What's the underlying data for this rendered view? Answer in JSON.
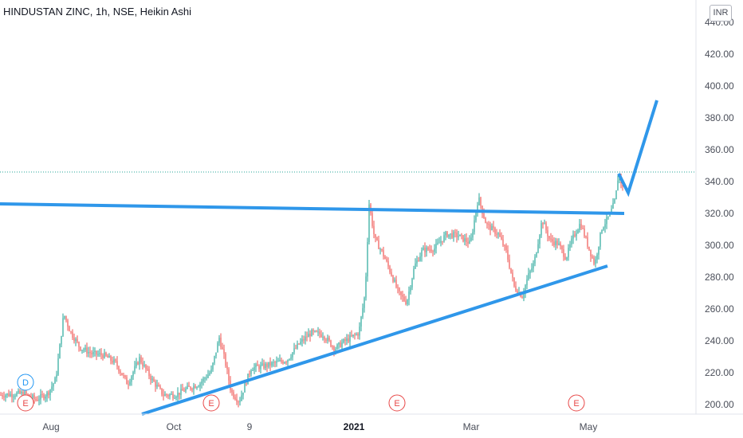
{
  "header": {
    "title": "HINDUSTAN ZINC, 1h, NSE, Heikin Ashi",
    "currency": "INR"
  },
  "colors": {
    "up": "#26a69a",
    "down": "#ef5350",
    "drawing": "#2f97ea",
    "axis_text": "#4a4e59",
    "price_line": "#26a69a",
    "event_earnings": "#e84a4a",
    "event_dividend": "#2196f3"
  },
  "chart_data": {
    "type": "candlestick",
    "style": "Heikin Ashi",
    "ylim": [
      196,
      444
    ],
    "yticks": [
      "440.00",
      "420.00",
      "400.00",
      "380.00",
      "360.00",
      "340.00",
      "320.00",
      "300.00",
      "280.00",
      "260.00",
      "240.00",
      "220.00",
      "200.00"
    ],
    "xticks": [
      {
        "label": "Aug",
        "bold": false
      },
      {
        "label": "Oct",
        "bold": false
      },
      {
        "label": "9",
        "bold": false
      },
      {
        "label": "2021",
        "bold": true
      },
      {
        "label": "Mar",
        "bold": false
      },
      {
        "label": "May",
        "bold": false
      }
    ],
    "price_path": [
      [
        0,
        206
      ],
      [
        30,
        207
      ],
      [
        45,
        203
      ],
      [
        60,
        207
      ],
      [
        70,
        216
      ],
      [
        80,
        257
      ],
      [
        88,
        246
      ],
      [
        100,
        236
      ],
      [
        115,
        232
      ],
      [
        130,
        231
      ],
      [
        145,
        226
      ],
      [
        160,
        213
      ],
      [
        175,
        229
      ],
      [
        190,
        216
      ],
      [
        205,
        206
      ],
      [
        220,
        206
      ],
      [
        235,
        210
      ],
      [
        250,
        213
      ],
      [
        265,
        221
      ],
      [
        275,
        242
      ],
      [
        282,
        228
      ],
      [
        290,
        208
      ],
      [
        300,
        202
      ],
      [
        315,
        223
      ],
      [
        330,
        224
      ],
      [
        345,
        226
      ],
      [
        360,
        228
      ],
      [
        375,
        238
      ],
      [
        390,
        245
      ],
      [
        405,
        244
      ],
      [
        420,
        235
      ],
      [
        430,
        239
      ],
      [
        450,
        245
      ],
      [
        458,
        270
      ],
      [
        463,
        326
      ],
      [
        470,
        304
      ],
      [
        480,
        295
      ],
      [
        490,
        283
      ],
      [
        500,
        270
      ],
      [
        510,
        264
      ],
      [
        520,
        287
      ],
      [
        530,
        297
      ],
      [
        545,
        298
      ],
      [
        560,
        307
      ],
      [
        575,
        306
      ],
      [
        590,
        301
      ],
      [
        600,
        330
      ],
      [
        610,
        313
      ],
      [
        625,
        307
      ],
      [
        635,
        296
      ],
      [
        645,
        274
      ],
      [
        655,
        268
      ],
      [
        662,
        280
      ],
      [
        670,
        289
      ],
      [
        680,
        316
      ],
      [
        690,
        303
      ],
      [
        700,
        301
      ],
      [
        710,
        292
      ],
      [
        718,
        304
      ],
      [
        728,
        314
      ],
      [
        738,
        299
      ],
      [
        746,
        288
      ],
      [
        755,
        311
      ],
      [
        765,
        319
      ],
      [
        772,
        329
      ],
      [
        776,
        346
      ],
      [
        781,
        336
      ]
    ],
    "last_price": 346,
    "drawings": [
      {
        "name": "resistance-line",
        "points": [
          [
            0,
            326
          ],
          [
            783,
            320
          ]
        ]
      },
      {
        "name": "support-trendline",
        "points": [
          [
            178,
            194
          ],
          [
            762,
            287
          ]
        ]
      },
      {
        "name": "projection-path",
        "points": [
          [
            776,
            345
          ],
          [
            788,
            333
          ],
          [
            824,
            391
          ]
        ]
      }
    ],
    "events": [
      {
        "type": "dividend",
        "letter": "D",
        "x": 32
      },
      {
        "type": "earnings",
        "letter": "E",
        "x": 32
      },
      {
        "type": "earnings",
        "letter": "E",
        "x": 265
      },
      {
        "type": "earnings",
        "letter": "E",
        "x": 498
      },
      {
        "type": "earnings",
        "letter": "E",
        "x": 723
      }
    ]
  }
}
